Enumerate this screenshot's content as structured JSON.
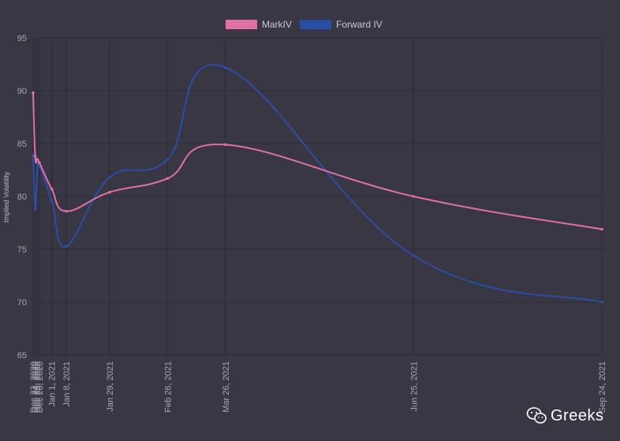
{
  "chart_data": {
    "type": "line",
    "ylabel": "Implied Volatility",
    "ylim": [
      65,
      95
    ],
    "yticks": [
      65,
      70,
      75,
      80,
      85,
      90,
      95
    ],
    "x": [
      "2020-12-23",
      "2020-12-24",
      "2020-12-25",
      "2020-12-26",
      "2021-01-01",
      "2021-01-08",
      "2021-01-29",
      "2021-02-26",
      "2021-03-26",
      "2021-06-25",
      "2021-09-24"
    ],
    "x_tick_labels": [
      "Dec 23, 2020",
      "Dec 24, 2020",
      "Dec 25, 2020",
      "Dec 26, 2020",
      "Jan 1, 2021",
      "Jan 8, 2021",
      "Jan 29, 2021",
      "Feb 26, 2021",
      "Mar 26, 2021",
      "Jun 25, 2021",
      "Sep 24, 2021"
    ],
    "grid": true,
    "legend_position": "top-center",
    "series": [
      {
        "name": "MarkIV",
        "color": "#e070a5",
        "values": [
          89.8,
          83.8,
          83.5,
          83.2,
          80.7,
          78.6,
          80.4,
          81.7,
          84.9,
          80.0,
          76.9
        ]
      },
      {
        "name": "Forward IV",
        "color": "#2b4ea5",
        "values": [
          83.9,
          78.8,
          82.4,
          82.9,
          79.6,
          75.3,
          81.8,
          83.5,
          92.2,
          74.4,
          70.0
        ]
      }
    ]
  },
  "watermark": {
    "text": "Greeks",
    "icon": "wechat-icon"
  }
}
